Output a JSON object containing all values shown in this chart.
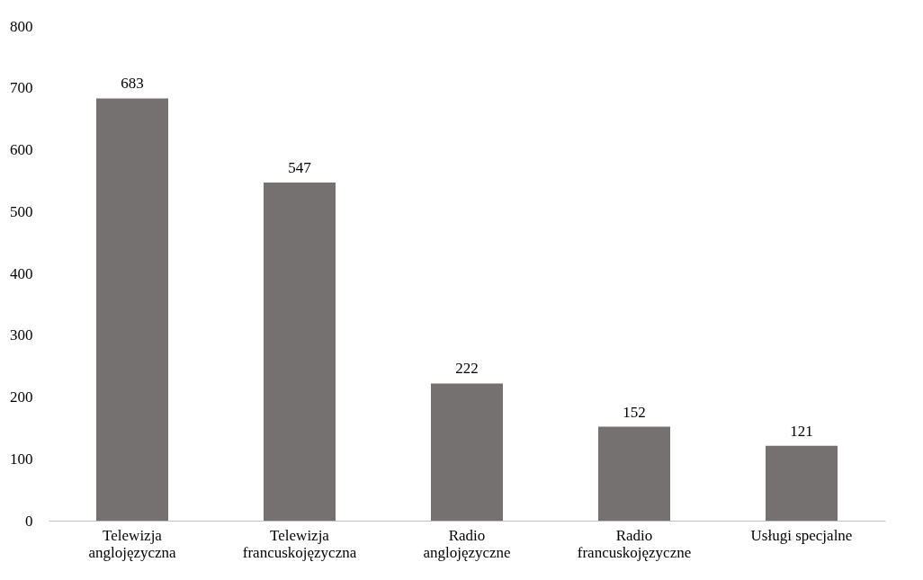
{
  "chart_data": {
    "type": "bar",
    "categories": [
      "Telewizja\nanglojęzyczna",
      "Telewizja\nfrancuskojęzyczna",
      "Radio\nanglojęzyczne",
      "Radio\nfrancuskojęzyczne",
      "Usługi specjalne"
    ],
    "values": [
      683,
      547,
      222,
      152,
      121
    ],
    "color": "#767171",
    "ylim": [
      0,
      800
    ],
    "yticks": [
      0,
      100,
      200,
      300,
      400,
      500,
      600,
      700,
      800
    ],
    "data_labels": true,
    "grid": false
  }
}
